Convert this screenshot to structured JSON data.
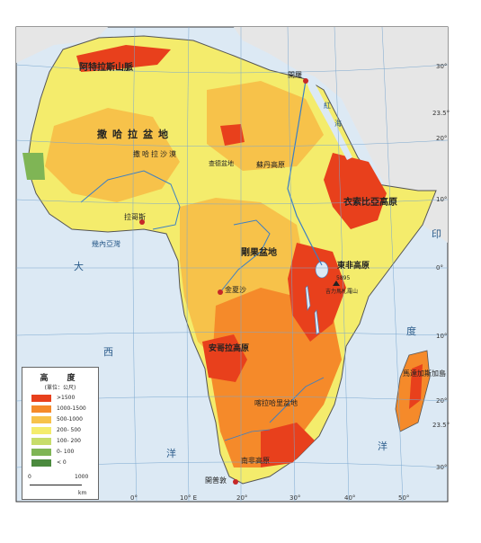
{
  "map": {
    "regions": [
      {
        "name": "撒哈拉盆地"
      },
      {
        "name": "撒哈拉沙漠"
      },
      {
        "name": "查德盆地"
      },
      {
        "name": "蘇丹高原"
      },
      {
        "name": "衣索比亞高原"
      },
      {
        "name": "東非高原"
      },
      {
        "name": "剛果盆地"
      },
      {
        "name": "安哥拉高原"
      },
      {
        "name": "喀拉哈里盆地"
      },
      {
        "name": "南非高原"
      },
      {
        "name": "馬達加斯加島"
      },
      {
        "name": "阿特拉斯山脈"
      },
      {
        "name": "幾內亞灣"
      },
      {
        "name": "大西洋"
      },
      {
        "name": "印度洋"
      },
      {
        "name": "吉力馬札羅山"
      }
    ],
    "cities": [
      {
        "name": "開羅"
      },
      {
        "name": "拉哥斯"
      },
      {
        "name": "金夏沙"
      },
      {
        "name": "開普敦"
      }
    ],
    "peak": {
      "elevation": "5895",
      "name": "吉力馬札羅山"
    },
    "lat_labels": [
      "30°",
      "23.5°",
      "20°",
      "10°",
      "0°",
      "10°",
      "20°",
      "23.5°",
      "30°"
    ],
    "lon_labels": [
      "0°",
      "10° E",
      "20°",
      "30°",
      "40°",
      "50°"
    ],
    "ocean_glyphs": {
      "atlantic_left": [
        "大",
        "西",
        "洋"
      ],
      "indian": [
        "印",
        "度",
        "洋"
      ],
      "red_sea": [
        "紅",
        "海"
      ]
    }
  },
  "legend": {
    "title": "高　度",
    "unit": "(單位：公尺)",
    "items": [
      {
        "label": ">1500",
        "color": "#e8401c"
      },
      {
        "label": "1000-1500",
        "color": "#f58a2a"
      },
      {
        "label": "500-1000",
        "color": "#f7c24a"
      },
      {
        "label": "200- 500",
        "color": "#f4ec6c"
      },
      {
        "label": "100- 200",
        "color": "#c7dd6a"
      },
      {
        "label": "0- 100",
        "color": "#7fb555"
      },
      {
        "label": "< 0",
        "color": "#4b8a3e"
      }
    ],
    "scale": {
      "start": "0",
      "end": "1000",
      "unit": "km"
    }
  },
  "colors": {
    "ocean": "#dce9f4",
    "land_outside": "#e6e6e6",
    "river": "#3b7fc4",
    "grid": "#7aa7cf"
  }
}
